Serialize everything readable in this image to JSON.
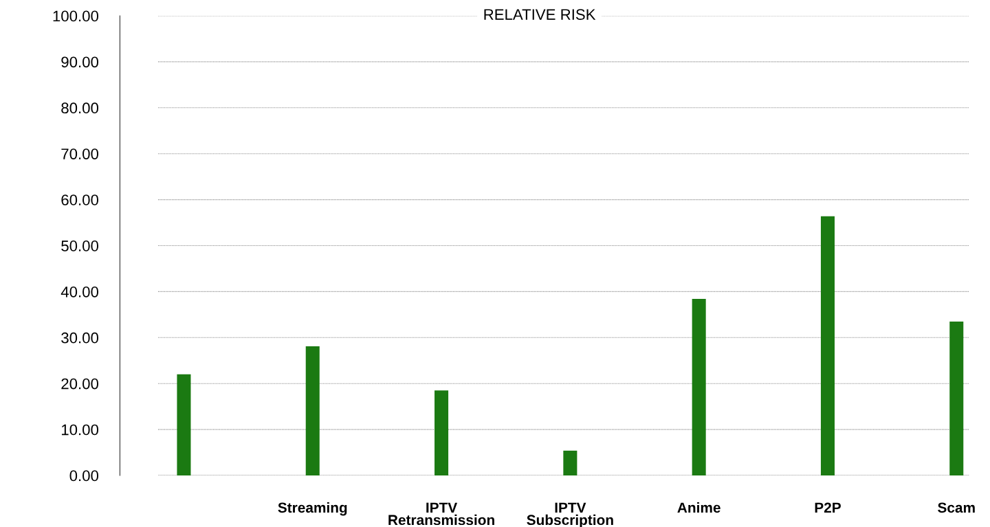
{
  "chart_data": {
    "type": "bar",
    "title": "RELATIVE RISK",
    "categories": [
      null,
      "Streaming",
      "IPTV\nRetransmission",
      "IPTV\nSubscription",
      "Anime",
      "P2P",
      "Scam"
    ],
    "values": [
      22.0,
      28.1,
      18.5,
      5.4,
      38.4,
      56.4,
      33.5
    ],
    "color": "#1b7a12",
    "ylim": [
      0,
      100
    ],
    "yticks": [
      {
        "value": 0,
        "label": "0.00"
      },
      {
        "value": 10,
        "label": "10.00"
      },
      {
        "value": 20,
        "label": "20.00"
      },
      {
        "value": 30,
        "label": "30.00"
      },
      {
        "value": 40,
        "label": "40.00"
      },
      {
        "value": 50,
        "label": "50.00"
      },
      {
        "value": 60,
        "label": "60.00"
      },
      {
        "value": 70,
        "label": "70.00"
      },
      {
        "value": 80,
        "label": "80.00"
      },
      {
        "value": 90,
        "label": "90.00"
      },
      {
        "value": 100,
        "label": "100.00"
      }
    ],
    "grid": "y",
    "legend": false
  }
}
